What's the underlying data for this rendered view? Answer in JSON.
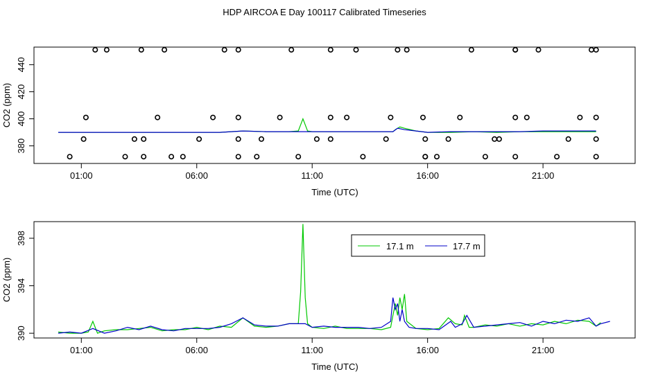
{
  "title": "HDP AIRCOA E  Day 100117  Calibrated Timeseries",
  "colors": {
    "green": "#00c800",
    "blue": "#0000c8",
    "axis": "#000000"
  },
  "chart_data": [
    {
      "type": "line",
      "xlabel": "Time (UTC)",
      "ylabel": "CO2 (ppm)",
      "xlim": [
        0,
        24
      ],
      "ylim": [
        367,
        453
      ],
      "xticks": [
        1,
        6,
        11,
        16,
        21
      ],
      "xtick_labels": [
        "01:00",
        "06:00",
        "11:00",
        "16:00",
        "21:00"
      ],
      "yticks": [
        380,
        400,
        420,
        440
      ],
      "ytick_labels": [
        "380",
        "400",
        "420",
        "440"
      ],
      "legend": "none",
      "grid": false,
      "series": [
        {
          "color": "#00c800",
          "x": [
            0,
            1,
            2,
            3,
            4,
            5,
            6,
            7,
            8,
            9,
            9.5,
            10,
            10.4,
            10.6,
            10.8,
            11,
            12,
            13,
            14,
            14.5,
            14.6,
            14.8,
            15,
            15.5,
            16,
            17,
            18,
            19,
            20,
            21,
            22,
            23,
            23.3
          ],
          "y": [
            390,
            390,
            390,
            390,
            390,
            390,
            390,
            390,
            391,
            390.5,
            390.5,
            390.5,
            391,
            400,
            391,
            390.5,
            390.5,
            390.5,
            390.5,
            390.5,
            392,
            394,
            393,
            391,
            390,
            390,
            390.5,
            390,
            390.5,
            390.5,
            390.5,
            390.5,
            390.5
          ]
        },
        {
          "color": "#0000c8",
          "x": [
            0,
            1,
            2,
            3,
            4,
            5,
            6,
            7,
            8,
            9,
            10,
            11,
            12,
            13,
            14,
            14.5,
            14.7,
            15,
            15.5,
            16,
            17,
            18,
            19,
            20,
            21,
            22,
            23,
            23.3
          ],
          "y": [
            390,
            390,
            390,
            390,
            390,
            390,
            390,
            390,
            391,
            390.5,
            390.5,
            390.5,
            390.5,
            390.5,
            390.5,
            390.5,
            393,
            392,
            391,
            390,
            390.5,
            390.5,
            390.5,
            390.5,
            391,
            391,
            391,
            391
          ]
        }
      ],
      "markers": {
        "x": [
          1.1,
          1.6,
          1.2,
          0.5,
          2.1,
          2.9,
          3.3,
          3.6,
          3.7,
          3.7,
          4.3,
          4.6,
          4.9,
          5.4,
          6.1,
          6.7,
          7.2,
          7.8,
          7.8,
          7.8,
          7.8,
          8.8,
          8.6,
          9.6,
          10.1,
          10.4,
          11.2,
          11.8,
          11.8,
          11.8,
          12.5,
          12.9,
          13.2,
          14.2,
          14.4,
          14.7,
          15.1,
          15.8,
          15.9,
          15.9,
          15.9,
          16.4,
          16.9,
          17.4,
          17.9,
          18.5,
          18.9,
          19.1,
          19.8,
          19.8,
          19.8,
          19.8,
          20.3,
          20.8,
          21.6,
          22.1,
          22.6,
          23.1,
          23.3,
          23.3,
          23.3,
          23.3
        ],
        "y": [
          385,
          451,
          401,
          372,
          451,
          372,
          385,
          451,
          385,
          372,
          401,
          451,
          372,
          372,
          385,
          401,
          451,
          451,
          401,
          385,
          372,
          385,
          372,
          401,
          451,
          372,
          385,
          385,
          401,
          451,
          401,
          451,
          372,
          385,
          401,
          451,
          451,
          401,
          385,
          372,
          372,
          372,
          385,
          401,
          451,
          372,
          385,
          385,
          372,
          401,
          451,
          451,
          401,
          451,
          372,
          385,
          401,
          451,
          451,
          401,
          385,
          372
        ]
      }
    },
    {
      "type": "line",
      "xlabel": "Time (UTC)",
      "ylabel": "CO2 (ppm)",
      "xlim": [
        0,
        24
      ],
      "ylim": [
        389.6,
        399.4
      ],
      "xticks": [
        1,
        6,
        11,
        16,
        21
      ],
      "xtick_labels": [
        "01:00",
        "06:00",
        "11:00",
        "16:00",
        "21:00"
      ],
      "yticks": [
        390,
        394,
        398
      ],
      "ytick_labels": [
        "390",
        "394",
        "398"
      ],
      "legend": "top-center",
      "grid": false,
      "series": [
        {
          "name": "17.1 m",
          "color": "#00c800",
          "x": [
            0,
            0.5,
            1.0,
            1.3,
            1.5,
            1.7,
            2,
            2.5,
            3,
            3.5,
            4,
            4.5,
            5,
            5.5,
            6,
            6.5,
            7,
            7.5,
            8,
            8.5,
            9,
            9.5,
            10,
            10.4,
            10.5,
            10.6,
            10.7,
            10.8,
            11,
            11.5,
            12,
            12.5,
            13,
            13.5,
            14,
            14.4,
            14.5,
            14.6,
            14.7,
            14.8,
            14.9,
            15,
            15.1,
            15.5,
            16,
            16.5,
            16.9,
            17.2,
            17.5,
            17.6,
            17.8,
            18,
            18.5,
            19,
            19.5,
            20,
            20.5,
            21,
            21.5,
            22,
            22.5,
            23,
            23.3,
            23.5
          ],
          "y": [
            390.1,
            390.0,
            390.0,
            390.1,
            391.0,
            390.0,
            390.2,
            390.3,
            390.3,
            390.4,
            390.5,
            390.2,
            390.3,
            390.3,
            390.5,
            390.3,
            390.6,
            390.5,
            391.3,
            390.6,
            390.5,
            390.6,
            390.8,
            390.8,
            393.5,
            399.2,
            393.0,
            390.8,
            390.5,
            390.4,
            390.6,
            390.4,
            390.4,
            390.4,
            390.3,
            390.5,
            391.5,
            392.5,
            391.5,
            393.0,
            392.0,
            393.3,
            391.0,
            390.4,
            390.3,
            390.4,
            391.3,
            390.8,
            390.7,
            391.5,
            390.5,
            390.5,
            390.7,
            390.6,
            390.8,
            390.6,
            390.8,
            390.7,
            391.0,
            390.8,
            391.1,
            391.0,
            390.6,
            390.9
          ]
        },
        {
          "name": "17.7 m",
          "color": "#0000c8",
          "x": [
            0,
            0.5,
            1.0,
            1.5,
            2,
            2.5,
            3,
            3.5,
            4,
            4.5,
            5,
            5.5,
            6,
            6.5,
            7,
            7.5,
            8,
            8.5,
            9,
            9.5,
            10,
            10.5,
            10.7,
            11,
            11.5,
            12,
            12.5,
            13,
            13.5,
            14,
            14.4,
            14.5,
            14.6,
            14.7,
            14.8,
            14.9,
            15,
            15.2,
            15.5,
            16,
            16.5,
            17,
            17.2,
            17.5,
            17.7,
            18,
            18.5,
            19,
            19.5,
            20,
            20.5,
            21,
            21.5,
            22,
            22.5,
            23,
            23.3,
            23.5,
            23.9
          ],
          "y": [
            390.0,
            390.1,
            390.0,
            390.4,
            390.0,
            390.2,
            390.5,
            390.3,
            390.6,
            390.3,
            390.2,
            390.4,
            390.4,
            390.4,
            390.5,
            390.8,
            391.3,
            390.7,
            390.6,
            390.6,
            390.8,
            390.8,
            390.8,
            390.5,
            390.6,
            390.5,
            390.5,
            390.5,
            390.4,
            390.5,
            391.0,
            393.0,
            392.0,
            392.5,
            391.0,
            392.0,
            391.0,
            390.5,
            390.4,
            390.4,
            390.3,
            391.0,
            390.5,
            390.8,
            391.5,
            390.5,
            390.6,
            390.7,
            390.8,
            390.9,
            390.6,
            391.0,
            390.8,
            391.1,
            391.0,
            391.3,
            390.6,
            390.8,
            391.0
          ]
        }
      ]
    }
  ]
}
